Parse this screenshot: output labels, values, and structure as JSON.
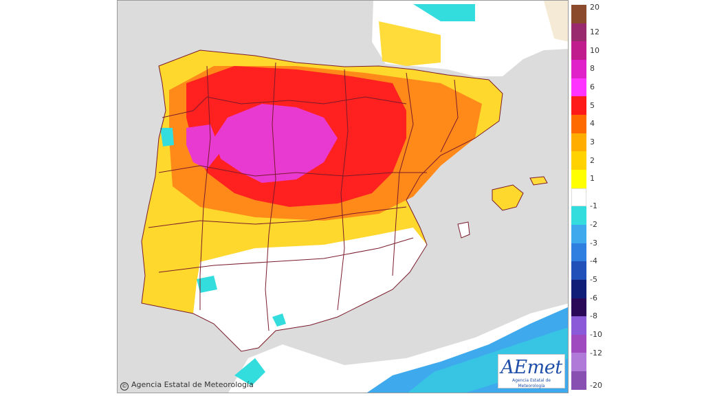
{
  "map": {
    "copyright_text": "Agencia Estatal de Meteorología",
    "copyright_symbol": "©",
    "logo_text": "AEmet",
    "logo_subtext": "Agencia Estatal de Meteorología"
  },
  "legend": {
    "labels": [
      "20",
      "12",
      "10",
      "8",
      "6",
      "5",
      "4",
      "3",
      "2",
      "1",
      "-1",
      "-2",
      "-3",
      "-4",
      "-5",
      "-6",
      "-8",
      "-10",
      "-12",
      "-20"
    ],
    "colors": [
      "#8b4a2b",
      "#9a2a6e",
      "#c01c8e",
      "#e021c9",
      "#ff33ff",
      "#ff1a1a",
      "#ff6a00",
      "#ffae00",
      "#ffd200",
      "#ffff00",
      "#ffffff",
      "#33dddd",
      "#3fa9ee",
      "#2f7fe0",
      "#2050b8",
      "#101e78",
      "#2a0a58",
      "#8a5ad8",
      "#a04ac0",
      "#b07ad8",
      "#8850b0"
    ]
  },
  "colors": {
    "sea": "#dcdcdc",
    "land_neutral": "#ffffff",
    "borders": "#7a1a2a"
  }
}
